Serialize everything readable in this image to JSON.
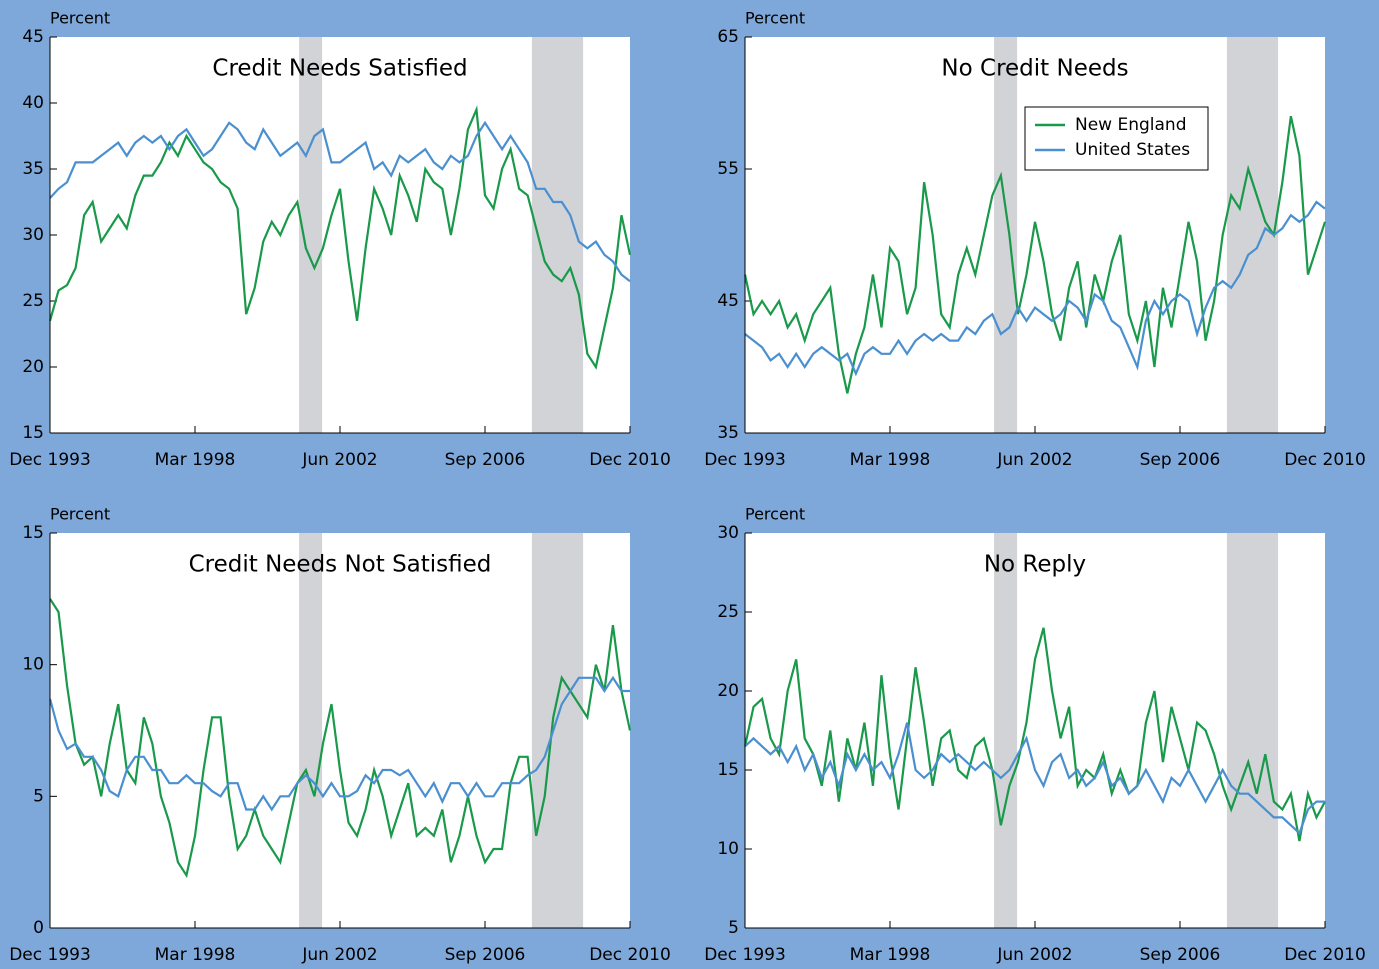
{
  "chart_data": [
    {
      "type": "line",
      "title": "Credit Needs Satisfied",
      "ylabel": "Percent",
      "categories": [
        "Dec 1993",
        null,
        null,
        null,
        null,
        null,
        null,
        null,
        null,
        null,
        null,
        null,
        null,
        null,
        null,
        null,
        null,
        "Mar 1998",
        null,
        null,
        null,
        null,
        null,
        null,
        null,
        null,
        null,
        null,
        null,
        null,
        null,
        null,
        null,
        null,
        "Jun 2002",
        null,
        null,
        null,
        null,
        null,
        null,
        null,
        null,
        null,
        null,
        null,
        null,
        null,
        null,
        null,
        null,
        "Sep 2006",
        null,
        null,
        null,
        null,
        null,
        null,
        null,
        null,
        null,
        null,
        null,
        null,
        null,
        null,
        null,
        null,
        "Dec 2010"
      ],
      "ylim": [
        15,
        45
      ],
      "yticks": [
        15,
        20,
        25,
        30,
        35,
        40,
        45
      ],
      "shaded": [
        [
          29.2,
          31.9
        ],
        [
          56.5,
          62.5
        ]
      ],
      "series": [
        {
          "color": "#19994a",
          "values": [
            23.5,
            25.8,
            26.2,
            27.5,
            31.5,
            32.5,
            29.5,
            30.5,
            31.5,
            30.5,
            33,
            34.5,
            34.5,
            35.5,
            37,
            36,
            37.5,
            36.5,
            35.5,
            35,
            34,
            33.5,
            32,
            24,
            26,
            29.5,
            31,
            30,
            31.5,
            32.5,
            29,
            27.5,
            29,
            31.5,
            33.5,
            28,
            23.5,
            29,
            33.5,
            32,
            30,
            34.5,
            33,
            31,
            35,
            34,
            33.5,
            30,
            33.5,
            38,
            39.5,
            33,
            32,
            35,
            36.5,
            33.5,
            33,
            30.5,
            28,
            27,
            26.5,
            27.5,
            25.5,
            21,
            20,
            23,
            26,
            31.5,
            28.5
          ]
        },
        {
          "color": "#4a8fd0",
          "values": [
            32.8,
            33.5,
            34,
            35.5,
            35.5,
            35.5,
            36,
            36.5,
            37,
            36,
            37,
            37.5,
            37,
            37.5,
            36.5,
            37.5,
            38,
            37,
            36,
            36.5,
            37.5,
            38.5,
            38,
            37,
            36.5,
            38,
            37,
            36,
            36.5,
            37,
            36,
            37.5,
            38,
            35.5,
            35.5,
            36,
            36.5,
            37,
            35,
            35.5,
            34.5,
            36,
            35.5,
            36,
            36.5,
            35.5,
            35,
            36,
            35.5,
            36,
            37.5,
            38.5,
            37.5,
            36.5,
            37.5,
            36.5,
            35.5,
            33.5,
            33.5,
            32.5,
            32.5,
            31.5,
            29.5,
            29,
            29.5,
            28.5,
            28,
            27,
            26.5
          ]
        }
      ]
    },
    {
      "type": "line",
      "title": "No Credit Needs",
      "ylabel": "Percent",
      "categories": [
        "Dec 1993",
        null,
        null,
        null,
        null,
        null,
        null,
        null,
        null,
        null,
        null,
        null,
        null,
        null,
        null,
        null,
        null,
        "Mar 1998",
        null,
        null,
        null,
        null,
        null,
        null,
        null,
        null,
        null,
        null,
        null,
        null,
        null,
        null,
        null,
        null,
        "Jun 2002",
        null,
        null,
        null,
        null,
        null,
        null,
        null,
        null,
        null,
        null,
        null,
        null,
        null,
        null,
        null,
        null,
        "Sep 2006",
        null,
        null,
        null,
        null,
        null,
        null,
        null,
        null,
        null,
        null,
        null,
        null,
        null,
        null,
        null,
        null,
        "Dec 2010"
      ],
      "ylim": [
        35,
        65
      ],
      "yticks": [
        35,
        45,
        55,
        65
      ],
      "shaded": [
        [
          29.2,
          31.9
        ],
        [
          56.5,
          62.5
        ]
      ],
      "legend": "top-right",
      "series": [
        {
          "name": "New England",
          "color": "#19994a",
          "values": [
            47,
            44,
            45,
            44,
            45,
            43,
            44,
            42,
            44,
            45,
            46,
            41,
            38,
            41,
            43,
            47,
            43,
            49,
            48,
            44,
            46,
            54,
            50,
            44,
            43,
            47,
            49,
            47,
            50,
            53,
            54.5,
            50,
            44,
            47,
            51,
            48,
            44,
            42,
            46,
            48,
            43,
            47,
            45,
            48,
            50,
            44,
            42,
            45,
            40,
            46,
            43,
            47,
            51,
            48,
            42,
            45,
            50,
            53,
            52,
            55,
            53,
            51,
            50,
            54,
            59,
            56,
            47,
            49,
            51
          ]
        },
        {
          "name": "United States",
          "color": "#4a8fd0",
          "values": [
            42.5,
            42,
            41.5,
            40.5,
            41,
            40,
            41,
            40,
            41,
            41.5,
            41,
            40.5,
            41,
            39.5,
            41,
            41.5,
            41,
            41,
            42,
            41,
            42,
            42.5,
            42,
            42.5,
            42,
            42,
            43,
            42.5,
            43.5,
            44,
            42.5,
            43,
            44.5,
            43.5,
            44.5,
            44,
            43.5,
            44,
            45,
            44.5,
            43.5,
            45.5,
            45,
            43.5,
            43,
            41.5,
            40,
            43.5,
            45,
            44,
            45,
            45.5,
            45,
            42.5,
            44.5,
            46,
            46.5,
            46,
            47,
            48.5,
            49,
            50.5,
            50,
            50.5,
            51.5,
            51,
            51.5,
            52.5,
            52
          ]
        }
      ]
    },
    {
      "type": "line",
      "title": "Credit Needs Not Satisfied",
      "ylabel": "Percent",
      "categories": [
        "Dec 1993",
        null,
        null,
        null,
        null,
        null,
        null,
        null,
        null,
        null,
        null,
        null,
        null,
        null,
        null,
        null,
        null,
        "Mar 1998",
        null,
        null,
        null,
        null,
        null,
        null,
        null,
        null,
        null,
        null,
        null,
        null,
        null,
        null,
        null,
        null,
        "Jun 2002",
        null,
        null,
        null,
        null,
        null,
        null,
        null,
        null,
        null,
        null,
        null,
        null,
        null,
        null,
        null,
        null,
        "Sep 2006",
        null,
        null,
        null,
        null,
        null,
        null,
        null,
        null,
        null,
        null,
        null,
        null,
        null,
        null,
        null,
        null,
        "Dec 2010"
      ],
      "ylim": [
        0,
        15
      ],
      "yticks": [
        0,
        5,
        10,
        15
      ],
      "shaded": [
        [
          29.2,
          31.9
        ],
        [
          56.5,
          62.5
        ]
      ],
      "series": [
        {
          "color": "#19994a",
          "values": [
            12.5,
            12,
            9.2,
            7,
            6.2,
            6.5,
            5,
            7,
            8.5,
            6,
            5.5,
            8,
            7,
            5,
            4,
            2.5,
            2,
            3.5,
            6,
            8,
            8,
            5,
            3,
            3.5,
            4.5,
            3.5,
            3,
            2.5,
            4,
            5.5,
            6,
            5,
            7,
            8.5,
            6,
            4,
            3.5,
            4.5,
            6,
            5,
            3.5,
            4.5,
            5.5,
            3.5,
            3.8,
            3.5,
            4.5,
            2.5,
            3.5,
            5,
            3.5,
            2.5,
            3,
            3,
            5.5,
            6.5,
            6.5,
            3.5,
            5,
            8,
            9.5,
            9,
            8.5,
            8,
            10,
            9,
            11.5,
            9,
            7.5
          ]
        },
        {
          "color": "#4a8fd0",
          "values": [
            8.7,
            7.5,
            6.8,
            7,
            6.5,
            6.5,
            6,
            5.2,
            5,
            6,
            6.5,
            6.5,
            6,
            6,
            5.5,
            5.5,
            5.8,
            5.5,
            5.5,
            5.2,
            5,
            5.5,
            5.5,
            4.5,
            4.5,
            5,
            4.5,
            5,
            5,
            5.5,
            5.8,
            5.5,
            5,
            5.5,
            5,
            5,
            5.2,
            5.8,
            5.5,
            6,
            6,
            5.8,
            6,
            5.5,
            5,
            5.5,
            4.8,
            5.5,
            5.5,
            5,
            5.5,
            5,
            5,
            5.5,
            5.5,
            5.5,
            5.8,
            6,
            6.5,
            7.5,
            8.5,
            9,
            9.5,
            9.5,
            9.5,
            9,
            9.5,
            9,
            9
          ]
        }
      ]
    },
    {
      "type": "line",
      "title": "No Reply",
      "ylabel": "Percent",
      "categories": [
        "Dec 1993",
        null,
        null,
        null,
        null,
        null,
        null,
        null,
        null,
        null,
        null,
        null,
        null,
        null,
        null,
        null,
        null,
        "Mar 1998",
        null,
        null,
        null,
        null,
        null,
        null,
        null,
        null,
        null,
        null,
        null,
        null,
        null,
        null,
        null,
        null,
        "Jun 2002",
        null,
        null,
        null,
        null,
        null,
        null,
        null,
        null,
        null,
        null,
        null,
        null,
        null,
        null,
        null,
        null,
        "Sep 2006",
        null,
        null,
        null,
        null,
        null,
        null,
        null,
        null,
        null,
        null,
        null,
        null,
        null,
        null,
        null,
        null,
        "Dec 2010"
      ],
      "ylim": [
        5,
        30
      ],
      "yticks": [
        5,
        10,
        15,
        20,
        25,
        30
      ],
      "shaded": [
        [
          29.2,
          31.9
        ],
        [
          56.5,
          62.5
        ]
      ],
      "series": [
        {
          "color": "#19994a",
          "values": [
            16.5,
            19,
            19.5,
            17,
            16,
            20,
            22,
            17,
            16,
            14,
            17.5,
            13,
            17,
            15,
            18,
            14,
            21,
            16,
            12.5,
            17,
            21.5,
            18,
            14,
            17,
            17.5,
            15,
            14.5,
            16.5,
            17,
            15,
            11.5,
            14,
            15.5,
            18,
            22,
            24,
            20,
            17,
            19,
            14,
            15,
            14.5,
            16,
            13.5,
            15,
            13.5,
            14,
            18,
            20,
            15.5,
            19,
            17,
            15,
            18,
            17.5,
            16,
            14,
            12.5,
            14,
            15.5,
            13.5,
            16,
            13,
            12.5,
            13.5,
            10.5,
            13.5,
            12,
            13
          ]
        },
        {
          "color": "#4a8fd0",
          "values": [
            16.5,
            17,
            16.5,
            16,
            16.5,
            15.5,
            16.5,
            15,
            16,
            14.5,
            15.5,
            14,
            16,
            15,
            16,
            15,
            15.5,
            14.5,
            16,
            18,
            15,
            14.5,
            15,
            16,
            15.5,
            16,
            15.5,
            15,
            15.5,
            15,
            14.5,
            15,
            16,
            17,
            15,
            14,
            15.5,
            16,
            14.5,
            15,
            14,
            14.5,
            15.5,
            14,
            14.5,
            13.5,
            14,
            15,
            14,
            13,
            14.5,
            14,
            15,
            14,
            13,
            14,
            15,
            14,
            13.5,
            13.5,
            13,
            12.5,
            12,
            12,
            11.5,
            11,
            12.5,
            13,
            13
          ]
        }
      ]
    }
  ]
}
